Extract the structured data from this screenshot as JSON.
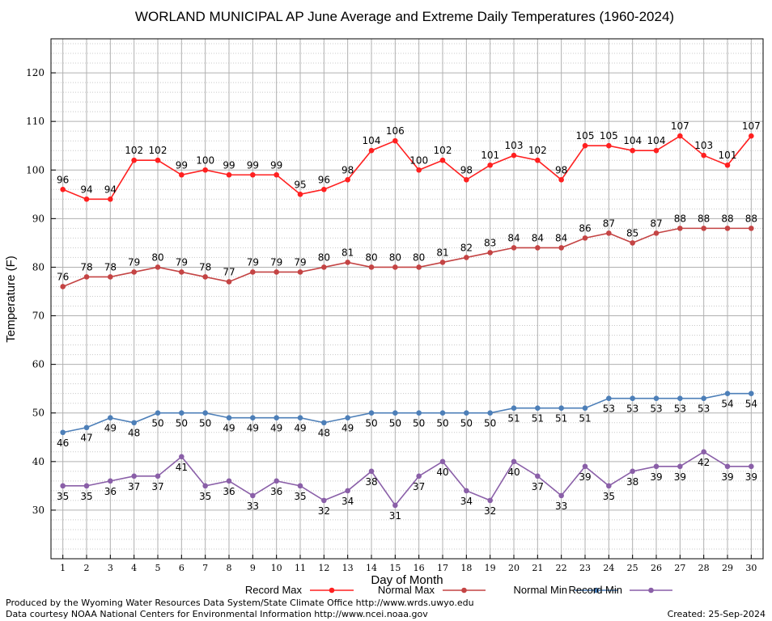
{
  "footer": {
    "produced_by": "Produced by the Wyoming Water Resources Data System/State Climate Office http://www.wrds.uwyo.edu",
    "data_courtesy": "Data courtesy NOAA National Centers for Environmental Information http://www.ncei.noaa.gov",
    "created": "Created: 25-Sep-2024"
  },
  "chart_data": {
    "type": "line",
    "title": "WORLAND MUNICIPAL AP June Average and Extreme Daily Temperatures (1960-2024)",
    "xlabel": "Day of Month",
    "ylabel": "Temperature (F)",
    "xlim": [
      0.5,
      30.5
    ],
    "ylim": [
      20,
      127
    ],
    "y_ticks": [
      30,
      40,
      50,
      60,
      70,
      80,
      90,
      100,
      110,
      120
    ],
    "x": [
      1,
      2,
      3,
      4,
      5,
      6,
      7,
      8,
      9,
      10,
      11,
      12,
      13,
      14,
      15,
      16,
      17,
      18,
      19,
      20,
      21,
      22,
      23,
      24,
      25,
      26,
      27,
      28,
      29,
      30
    ],
    "grid": true,
    "legend_position": "bottom",
    "series": [
      {
        "name": "Record Max",
        "color": "#ff2020",
        "label_pos": "above",
        "values": [
          96,
          94,
          94,
          102,
          102,
          99,
          100,
          99,
          99,
          99,
          95,
          96,
          98,
          104,
          106,
          100,
          102,
          98,
          101,
          103,
          102,
          98,
          105,
          105,
          104,
          104,
          107,
          103,
          101,
          107
        ]
      },
      {
        "name": "Normal Max",
        "color": "#c44444",
        "label_pos": "above",
        "values": [
          76,
          78,
          78,
          79,
          80,
          79,
          78,
          77,
          79,
          79,
          79,
          80,
          81,
          80,
          80,
          80,
          81,
          82,
          83,
          84,
          84,
          84,
          86,
          87,
          85,
          87,
          88,
          88,
          88,
          88
        ]
      },
      {
        "name": "Normal Min",
        "color": "#4d7fb8",
        "label_pos": "below",
        "values": [
          46,
          47,
          49,
          48,
          50,
          50,
          50,
          49,
          49,
          49,
          49,
          48,
          49,
          50,
          50,
          50,
          50,
          50,
          50,
          51,
          51,
          51,
          51,
          53,
          53,
          53,
          53,
          53,
          54,
          54
        ]
      },
      {
        "name": "Record Min",
        "color": "#8a5fa8",
        "label_pos": "below",
        "values": [
          35,
          35,
          36,
          37,
          37,
          41,
          35,
          36,
          33,
          36,
          35,
          32,
          34,
          38,
          31,
          37,
          40,
          34,
          32,
          40,
          37,
          33,
          39,
          35,
          38,
          39,
          39,
          42,
          39,
          39
        ]
      }
    ]
  }
}
